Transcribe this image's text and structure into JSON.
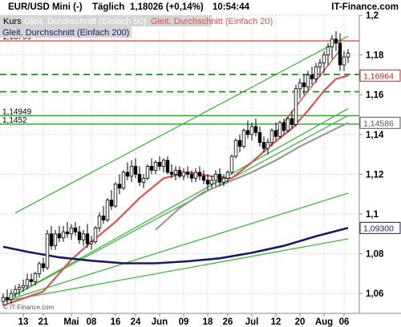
{
  "chart_data": {
    "type": "candlestick",
    "header": {
      "symbol": "EUR/USD Mini (-)",
      "interval": "Täglich",
      "price_change": "1,18026 (+0,14%)",
      "time": "10:54:44",
      "source": "IT-Finance.com"
    },
    "legend": [
      {
        "name": "Kurs",
        "color": "#000000"
      },
      {
        "name": "Gleit. Durchschnitt (Einfach 50)",
        "color": "#9a9a9a"
      },
      {
        "name": "Gleit. Durchschnitt (Einfach 20)",
        "color": "#e05050"
      },
      {
        "name": "Gleit. Durchschnitt (Einfach 200)",
        "color": "#1a1a5e"
      }
    ],
    "copyright": "© IT-Finance.com",
    "ylim": [
      1.05,
      1.2
    ],
    "y_ticks": [
      {
        "value": 1.2,
        "label": "1,2"
      },
      {
        "value": 1.18,
        "label": "1,18"
      },
      {
        "value": 1.16,
        "label": "1,16"
      },
      {
        "value": 1.14,
        "label": "1,14"
      },
      {
        "value": 1.12,
        "label": "1,12"
      },
      {
        "value": 1.1,
        "label": "1,1"
      },
      {
        "value": 1.08,
        "label": "1,08"
      },
      {
        "value": 1.06,
        "label": "1,06"
      }
    ],
    "x_ticks": [
      {
        "i": 5,
        "label": "13"
      },
      {
        "i": 10,
        "label": "21"
      },
      {
        "i": 17,
        "label": "Mai"
      },
      {
        "i": 22,
        "label": "08"
      },
      {
        "i": 28,
        "label": "16"
      },
      {
        "i": 33,
        "label": "24"
      },
      {
        "i": 39,
        "label": "Jun"
      },
      {
        "i": 45,
        "label": "09"
      },
      {
        "i": 51,
        "label": "18"
      },
      {
        "i": 56,
        "label": "26"
      },
      {
        "i": 62,
        "label": "Jul"
      },
      {
        "i": 68,
        "label": "12"
      },
      {
        "i": 74,
        "label": "20"
      },
      {
        "i": 80,
        "label": "Aug"
      },
      {
        "i": 85,
        "label": "06"
      }
    ],
    "level_labels": [
      {
        "value": 1.18709,
        "label": "1,18709"
      },
      {
        "value": 1.14949,
        "label": "1,14949"
      },
      {
        "value": 1.1452,
        "label": "1,1452"
      }
    ],
    "price_tags": [
      {
        "value": 1.16964,
        "label": "1,16964",
        "color": "#cc2222"
      },
      {
        "value": 1.14586,
        "label": "1,14586",
        "color": "#555555"
      },
      {
        "value": 1.093,
        "label": "1,09300",
        "color": "#1a1a5e"
      }
    ],
    "horizontal_lines": [
      {
        "value": 1.18709,
        "color": "#e03a3a",
        "style": "solid"
      },
      {
        "value": 1.1702,
        "color": "#1f8f1f",
        "style": "dashed"
      },
      {
        "value": 1.1615,
        "color": "#1f8f1f",
        "style": "dashed"
      },
      {
        "value": 1.14949,
        "color": "#1f8f1f",
        "style": "solid"
      },
      {
        "value": 1.1452,
        "color": "#1f8f1f",
        "style": "solid"
      }
    ],
    "trend_lines": [
      {
        "from": [
          3,
          1.1005
        ],
        "to": [
          86,
          1.1895
        ],
        "color": "#3db83d"
      },
      {
        "from": [
          0,
          1.056
        ],
        "to": [
          86,
          1.153
        ],
        "color": "#3db83d"
      },
      {
        "from": [
          0,
          1.056
        ],
        "to": [
          86,
          1.1495
        ],
        "color": "#3db83d"
      },
      {
        "from": [
          0,
          1.056
        ],
        "to": [
          86,
          1.1105
        ],
        "color": "#3db83d"
      },
      {
        "from": [
          0,
          1.056
        ],
        "to": [
          86,
          1.0875
        ],
        "color": "#3db83d"
      },
      {
        "from": [
          68,
          1.141
        ],
        "to": [
          84,
          1.1825
        ],
        "color": "#e03a3a"
      }
    ],
    "candles": [
      {
        "o": 1.056,
        "h": 1.06,
        "l": 1.054,
        "c": 1.058
      },
      {
        "o": 1.058,
        "h": 1.062,
        "l": 1.055,
        "c": 1.057
      },
      {
        "o": 1.057,
        "h": 1.062,
        "l": 1.055,
        "c": 1.06
      },
      {
        "o": 1.06,
        "h": 1.064,
        "l": 1.058,
        "c": 1.062
      },
      {
        "o": 1.062,
        "h": 1.065,
        "l": 1.059,
        "c": 1.063
      },
      {
        "o": 1.063,
        "h": 1.067,
        "l": 1.061,
        "c": 1.064
      },
      {
        "o": 1.064,
        "h": 1.07,
        "l": 1.062,
        "c": 1.067
      },
      {
        "o": 1.067,
        "h": 1.07,
        "l": 1.064,
        "c": 1.066
      },
      {
        "o": 1.066,
        "h": 1.071,
        "l": 1.064,
        "c": 1.07
      },
      {
        "o": 1.07,
        "h": 1.076,
        "l": 1.068,
        "c": 1.075
      },
      {
        "o": 1.075,
        "h": 1.078,
        "l": 1.071,
        "c": 1.073
      },
      {
        "o": 1.073,
        "h": 1.092,
        "l": 1.072,
        "c": 1.09
      },
      {
        "o": 1.09,
        "h": 1.094,
        "l": 1.082,
        "c": 1.084
      },
      {
        "o": 1.084,
        "h": 1.092,
        "l": 1.082,
        "c": 1.09
      },
      {
        "o": 1.09,
        "h": 1.094,
        "l": 1.086,
        "c": 1.088
      },
      {
        "o": 1.088,
        "h": 1.094,
        "l": 1.086,
        "c": 1.091
      },
      {
        "o": 1.091,
        "h": 1.096,
        "l": 1.088,
        "c": 1.09
      },
      {
        "o": 1.09,
        "h": 1.095,
        "l": 1.087,
        "c": 1.093
      },
      {
        "o": 1.093,
        "h": 1.096,
        "l": 1.089,
        "c": 1.091
      },
      {
        "o": 1.091,
        "h": 1.094,
        "l": 1.085,
        "c": 1.087
      },
      {
        "o": 1.087,
        "h": 1.092,
        "l": 1.084,
        "c": 1.09
      },
      {
        "o": 1.09,
        "h": 1.095,
        "l": 1.083,
        "c": 1.085
      },
      {
        "o": 1.085,
        "h": 1.089,
        "l": 1.082,
        "c": 1.086
      },
      {
        "o": 1.086,
        "h": 1.094,
        "l": 1.085,
        "c": 1.093
      },
      {
        "o": 1.093,
        "h": 1.101,
        "l": 1.091,
        "c": 1.099
      },
      {
        "o": 1.099,
        "h": 1.104,
        "l": 1.095,
        "c": 1.097
      },
      {
        "o": 1.097,
        "h": 1.108,
        "l": 1.096,
        "c": 1.107
      },
      {
        "o": 1.107,
        "h": 1.112,
        "l": 1.102,
        "c": 1.104
      },
      {
        "o": 1.104,
        "h": 1.116,
        "l": 1.103,
        "c": 1.115
      },
      {
        "o": 1.115,
        "h": 1.12,
        "l": 1.11,
        "c": 1.113
      },
      {
        "o": 1.113,
        "h": 1.122,
        "l": 1.112,
        "c": 1.121
      },
      {
        "o": 1.121,
        "h": 1.126,
        "l": 1.117,
        "c": 1.119
      },
      {
        "o": 1.119,
        "h": 1.127,
        "l": 1.116,
        "c": 1.124
      },
      {
        "o": 1.124,
        "h": 1.128,
        "l": 1.118,
        "c": 1.12
      },
      {
        "o": 1.12,
        "h": 1.124,
        "l": 1.114,
        "c": 1.116
      },
      {
        "o": 1.116,
        "h": 1.12,
        "l": 1.113,
        "c": 1.118
      },
      {
        "o": 1.118,
        "h": 1.125,
        "l": 1.117,
        "c": 1.124
      },
      {
        "o": 1.124,
        "h": 1.128,
        "l": 1.12,
        "c": 1.122
      },
      {
        "o": 1.122,
        "h": 1.127,
        "l": 1.12,
        "c": 1.126
      },
      {
        "o": 1.126,
        "h": 1.129,
        "l": 1.122,
        "c": 1.124
      },
      {
        "o": 1.124,
        "h": 1.128,
        "l": 1.121,
        "c": 1.127
      },
      {
        "o": 1.127,
        "h": 1.129,
        "l": 1.12,
        "c": 1.121
      },
      {
        "o": 1.121,
        "h": 1.125,
        "l": 1.118,
        "c": 1.12
      },
      {
        "o": 1.12,
        "h": 1.124,
        "l": 1.117,
        "c": 1.122
      },
      {
        "o": 1.122,
        "h": 1.124,
        "l": 1.118,
        "c": 1.119
      },
      {
        "o": 1.119,
        "h": 1.123,
        "l": 1.117,
        "c": 1.121
      },
      {
        "o": 1.121,
        "h": 1.124,
        "l": 1.118,
        "c": 1.12
      },
      {
        "o": 1.12,
        "h": 1.122,
        "l": 1.116,
        "c": 1.118
      },
      {
        "o": 1.118,
        "h": 1.123,
        "l": 1.116,
        "c": 1.121
      },
      {
        "o": 1.121,
        "h": 1.124,
        "l": 1.117,
        "c": 1.119
      },
      {
        "o": 1.119,
        "h": 1.122,
        "l": 1.115,
        "c": 1.117
      },
      {
        "o": 1.117,
        "h": 1.12,
        "l": 1.112,
        "c": 1.115
      },
      {
        "o": 1.115,
        "h": 1.119,
        "l": 1.113,
        "c": 1.117
      },
      {
        "o": 1.117,
        "h": 1.122,
        "l": 1.114,
        "c": 1.12
      },
      {
        "o": 1.12,
        "h": 1.123,
        "l": 1.114,
        "c": 1.116
      },
      {
        "o": 1.116,
        "h": 1.12,
        "l": 1.114,
        "c": 1.118
      },
      {
        "o": 1.118,
        "h": 1.122,
        "l": 1.116,
        "c": 1.121
      },
      {
        "o": 1.121,
        "h": 1.13,
        "l": 1.12,
        "c": 1.129
      },
      {
        "o": 1.129,
        "h": 1.138,
        "l": 1.128,
        "c": 1.137
      },
      {
        "o": 1.137,
        "h": 1.14,
        "l": 1.131,
        "c": 1.134
      },
      {
        "o": 1.134,
        "h": 1.143,
        "l": 1.133,
        "c": 1.142
      },
      {
        "o": 1.142,
        "h": 1.147,
        "l": 1.138,
        "c": 1.14
      },
      {
        "o": 1.14,
        "h": 1.146,
        "l": 1.137,
        "c": 1.144
      },
      {
        "o": 1.144,
        "h": 1.148,
        "l": 1.139,
        "c": 1.141
      },
      {
        "o": 1.141,
        "h": 1.144,
        "l": 1.134,
        "c": 1.136
      },
      {
        "o": 1.136,
        "h": 1.139,
        "l": 1.131,
        "c": 1.133
      },
      {
        "o": 1.133,
        "h": 1.138,
        "l": 1.13,
        "c": 1.136
      },
      {
        "o": 1.136,
        "h": 1.143,
        "l": 1.134,
        "c": 1.142
      },
      {
        "o": 1.142,
        "h": 1.146,
        "l": 1.137,
        "c": 1.139
      },
      {
        "o": 1.139,
        "h": 1.147,
        "l": 1.138,
        "c": 1.146
      },
      {
        "o": 1.146,
        "h": 1.148,
        "l": 1.14,
        "c": 1.142
      },
      {
        "o": 1.142,
        "h": 1.149,
        "l": 1.141,
        "c": 1.148
      },
      {
        "o": 1.148,
        "h": 1.152,
        "l": 1.143,
        "c": 1.145
      },
      {
        "o": 1.145,
        "h": 1.165,
        "l": 1.144,
        "c": 1.163
      },
      {
        "o": 1.163,
        "h": 1.168,
        "l": 1.158,
        "c": 1.166
      },
      {
        "o": 1.166,
        "h": 1.17,
        "l": 1.16,
        "c": 1.164
      },
      {
        "o": 1.164,
        "h": 1.172,
        "l": 1.162,
        "c": 1.17
      },
      {
        "o": 1.17,
        "h": 1.174,
        "l": 1.165,
        "c": 1.168
      },
      {
        "o": 1.168,
        "h": 1.176,
        "l": 1.166,
        "c": 1.174
      },
      {
        "o": 1.174,
        "h": 1.178,
        "l": 1.169,
        "c": 1.176
      },
      {
        "o": 1.176,
        "h": 1.182,
        "l": 1.171,
        "c": 1.18
      },
      {
        "o": 1.18,
        "h": 1.186,
        "l": 1.175,
        "c": 1.184
      },
      {
        "o": 1.184,
        "h": 1.19,
        "l": 1.178,
        "c": 1.188
      },
      {
        "o": 1.188,
        "h": 1.192,
        "l": 1.182,
        "c": 1.186
      },
      {
        "o": 1.186,
        "h": 1.191,
        "l": 1.172,
        "c": 1.175
      },
      {
        "o": 1.175,
        "h": 1.182,
        "l": 1.172,
        "c": 1.179
      },
      {
        "o": 1.179,
        "h": 1.183,
        "l": 1.176,
        "c": 1.181
      }
    ],
    "moving_averages": [
      {
        "name": "Gleit. Durchschnitt (Einfach 20)",
        "color": "#e05050",
        "points": [
          [
            0,
            1.054
          ],
          [
            10,
            1.061
          ],
          [
            17,
            1.077
          ],
          [
            22,
            1.086
          ],
          [
            28,
            1.096
          ],
          [
            34,
            1.108
          ],
          [
            40,
            1.118
          ],
          [
            46,
            1.121
          ],
          [
            52,
            1.119
          ],
          [
            57,
            1.118
          ],
          [
            62,
            1.126
          ],
          [
            67,
            1.135
          ],
          [
            72,
            1.143
          ],
          [
            76,
            1.152
          ],
          [
            80,
            1.162
          ],
          [
            83,
            1.168
          ],
          [
            86,
            1.1696
          ]
        ]
      },
      {
        "name": "Gleit. Durchschnitt (Einfach 50)",
        "color": "#9a9a9a",
        "points": [
          [
            38,
            1.092
          ],
          [
            44,
            1.103
          ],
          [
            50,
            1.111
          ],
          [
            56,
            1.116
          ],
          [
            62,
            1.121
          ],
          [
            68,
            1.127
          ],
          [
            74,
            1.134
          ],
          [
            80,
            1.14
          ],
          [
            86,
            1.1459
          ]
        ]
      },
      {
        "name": "Gleit. Durchschnitt (Einfach 200)",
        "color": "#1a1a5e",
        "points": [
          [
            0,
            1.0835
          ],
          [
            6,
            1.081
          ],
          [
            14,
            1.0782
          ],
          [
            22,
            1.0765
          ],
          [
            30,
            1.0752
          ],
          [
            38,
            1.0752
          ],
          [
            46,
            1.0762
          ],
          [
            54,
            1.0777
          ],
          [
            62,
            1.0805
          ],
          [
            70,
            1.084
          ],
          [
            78,
            1.0888
          ],
          [
            86,
            1.093
          ]
        ]
      }
    ]
  }
}
